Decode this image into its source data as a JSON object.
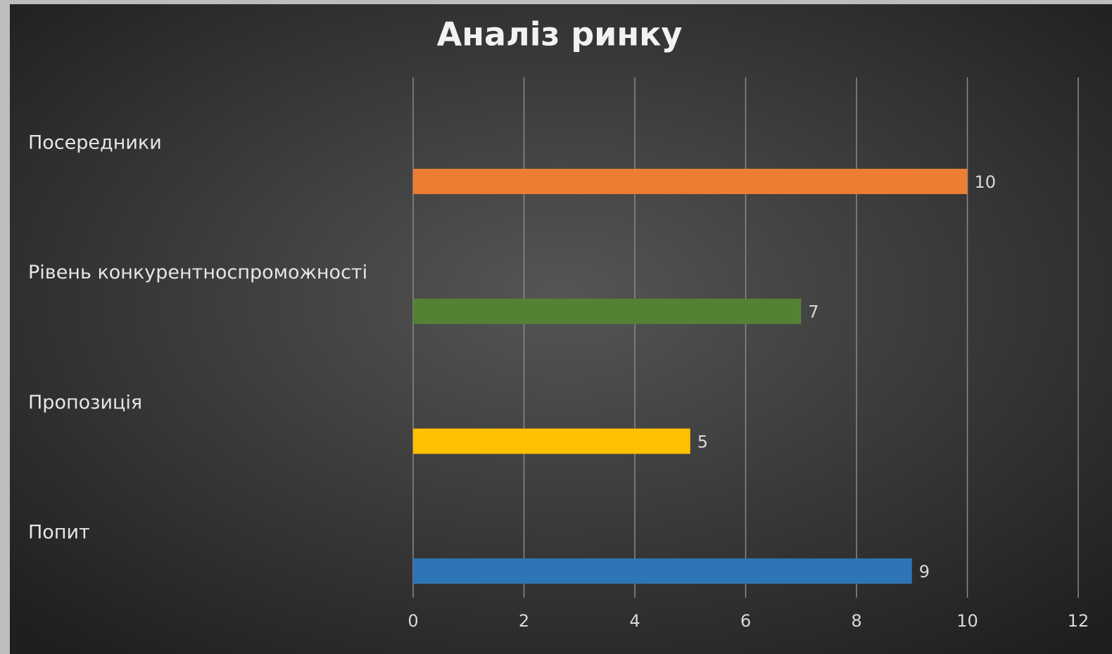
{
  "chart_data": {
    "type": "hbar",
    "title": "Аналіз ринку",
    "categories": [
      "Посередники",
      "Рівень конкурентноспроможності",
      "Пропозиція",
      "Попит"
    ],
    "values": [
      10,
      7,
      5,
      9
    ],
    "colors": [
      "#ed7d31",
      "#548235",
      "#ffc000",
      "#2e75b6"
    ],
    "xlim": [
      0,
      12
    ],
    "xticks": [
      0,
      2,
      4,
      6,
      8,
      10,
      12
    ],
    "grid": true
  }
}
